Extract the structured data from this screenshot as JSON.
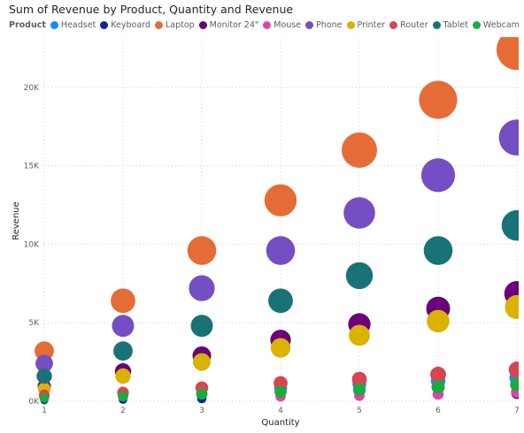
{
  "chart_data": {
    "type": "scatter",
    "title": "Sum of Revenue by Product, Quantity and Revenue",
    "legend_title": "Product",
    "legend_position": "top-left",
    "xlabel": "Quantity",
    "ylabel": "Revenue",
    "xlim": [
      1,
      7
    ],
    "ylim": [
      0,
      23200
    ],
    "x_ticks": [
      1,
      2,
      3,
      4,
      5,
      6,
      7
    ],
    "y_ticks": [
      0,
      5000,
      10000,
      15000,
      20000
    ],
    "y_tick_labels": [
      "0K",
      "5K",
      "10K",
      "15K",
      "20K"
    ],
    "grid": true,
    "series": [
      {
        "name": "Headset",
        "color": "#118DFF",
        "points": [
          [
            1,
            100
          ],
          [
            2,
            150
          ],
          [
            3,
            250
          ],
          [
            4,
            850
          ],
          [
            5,
            1100
          ],
          [
            6,
            1300
          ],
          [
            7,
            1500
          ]
        ]
      },
      {
        "name": "Keyboard",
        "color": "#12239E",
        "points": [
          [
            1,
            50
          ],
          [
            2,
            100
          ],
          [
            3,
            150
          ],
          [
            4,
            600
          ],
          [
            5,
            700
          ],
          [
            6,
            900
          ],
          [
            7,
            500
          ]
        ]
      },
      {
        "name": "Laptop",
        "color": "#E66C37",
        "points": [
          [
            1,
            3200
          ],
          [
            2,
            6400
          ],
          [
            3,
            9600
          ],
          [
            4,
            12800
          ],
          [
            5,
            16000
          ],
          [
            6,
            19200
          ],
          [
            7,
            22400
          ]
        ]
      },
      {
        "name": "Monitor 24\"",
        "color": "#6B007B",
        "points": [
          [
            1,
            950
          ],
          [
            2,
            1900
          ],
          [
            3,
            2900
          ],
          [
            4,
            3900
          ],
          [
            5,
            4900
          ],
          [
            6,
            5900
          ],
          [
            7,
            6850
          ]
        ]
      },
      {
        "name": "Mouse",
        "color": "#E044A7",
        "points": [
          [
            1,
            300
          ],
          [
            2,
            400
          ],
          [
            3,
            500
          ],
          [
            4,
            300
          ],
          [
            5,
            350
          ],
          [
            6,
            450
          ],
          [
            7,
            600
          ]
        ]
      },
      {
        "name": "Phone",
        "color": "#744EC2",
        "points": [
          [
            1,
            2400
          ],
          [
            2,
            4800
          ],
          [
            3,
            7200
          ],
          [
            4,
            9600
          ],
          [
            5,
            12000
          ],
          [
            6,
            14400
          ],
          [
            7,
            16800
          ]
        ]
      },
      {
        "name": "Printer",
        "color": "#D9B300",
        "points": [
          [
            1,
            800
          ],
          [
            2,
            1600
          ],
          [
            3,
            2500
          ],
          [
            4,
            3400
          ],
          [
            5,
            4200
          ],
          [
            6,
            5100
          ],
          [
            7,
            6000
          ]
        ]
      },
      {
        "name": "Router",
        "color": "#D64550",
        "points": [
          [
            1,
            400
          ],
          [
            2,
            550
          ],
          [
            3,
            850
          ],
          [
            4,
            1150
          ],
          [
            5,
            1400
          ],
          [
            6,
            1700
          ],
          [
            7,
            2000
          ]
        ]
      },
      {
        "name": "Tablet",
        "color": "#197278",
        "points": [
          [
            1,
            1600
          ],
          [
            2,
            3200
          ],
          [
            3,
            4800
          ],
          [
            4,
            6400
          ],
          [
            5,
            8000
          ],
          [
            6,
            9600
          ],
          [
            7,
            11200
          ]
        ]
      },
      {
        "name": "Webcam",
        "color": "#1AAB40",
        "points": [
          [
            1,
            200
          ],
          [
            2,
            300
          ],
          [
            3,
            450
          ],
          [
            4,
            600
          ],
          [
            5,
            750
          ],
          [
            6,
            900
          ],
          [
            7,
            1050
          ]
        ]
      }
    ]
  }
}
